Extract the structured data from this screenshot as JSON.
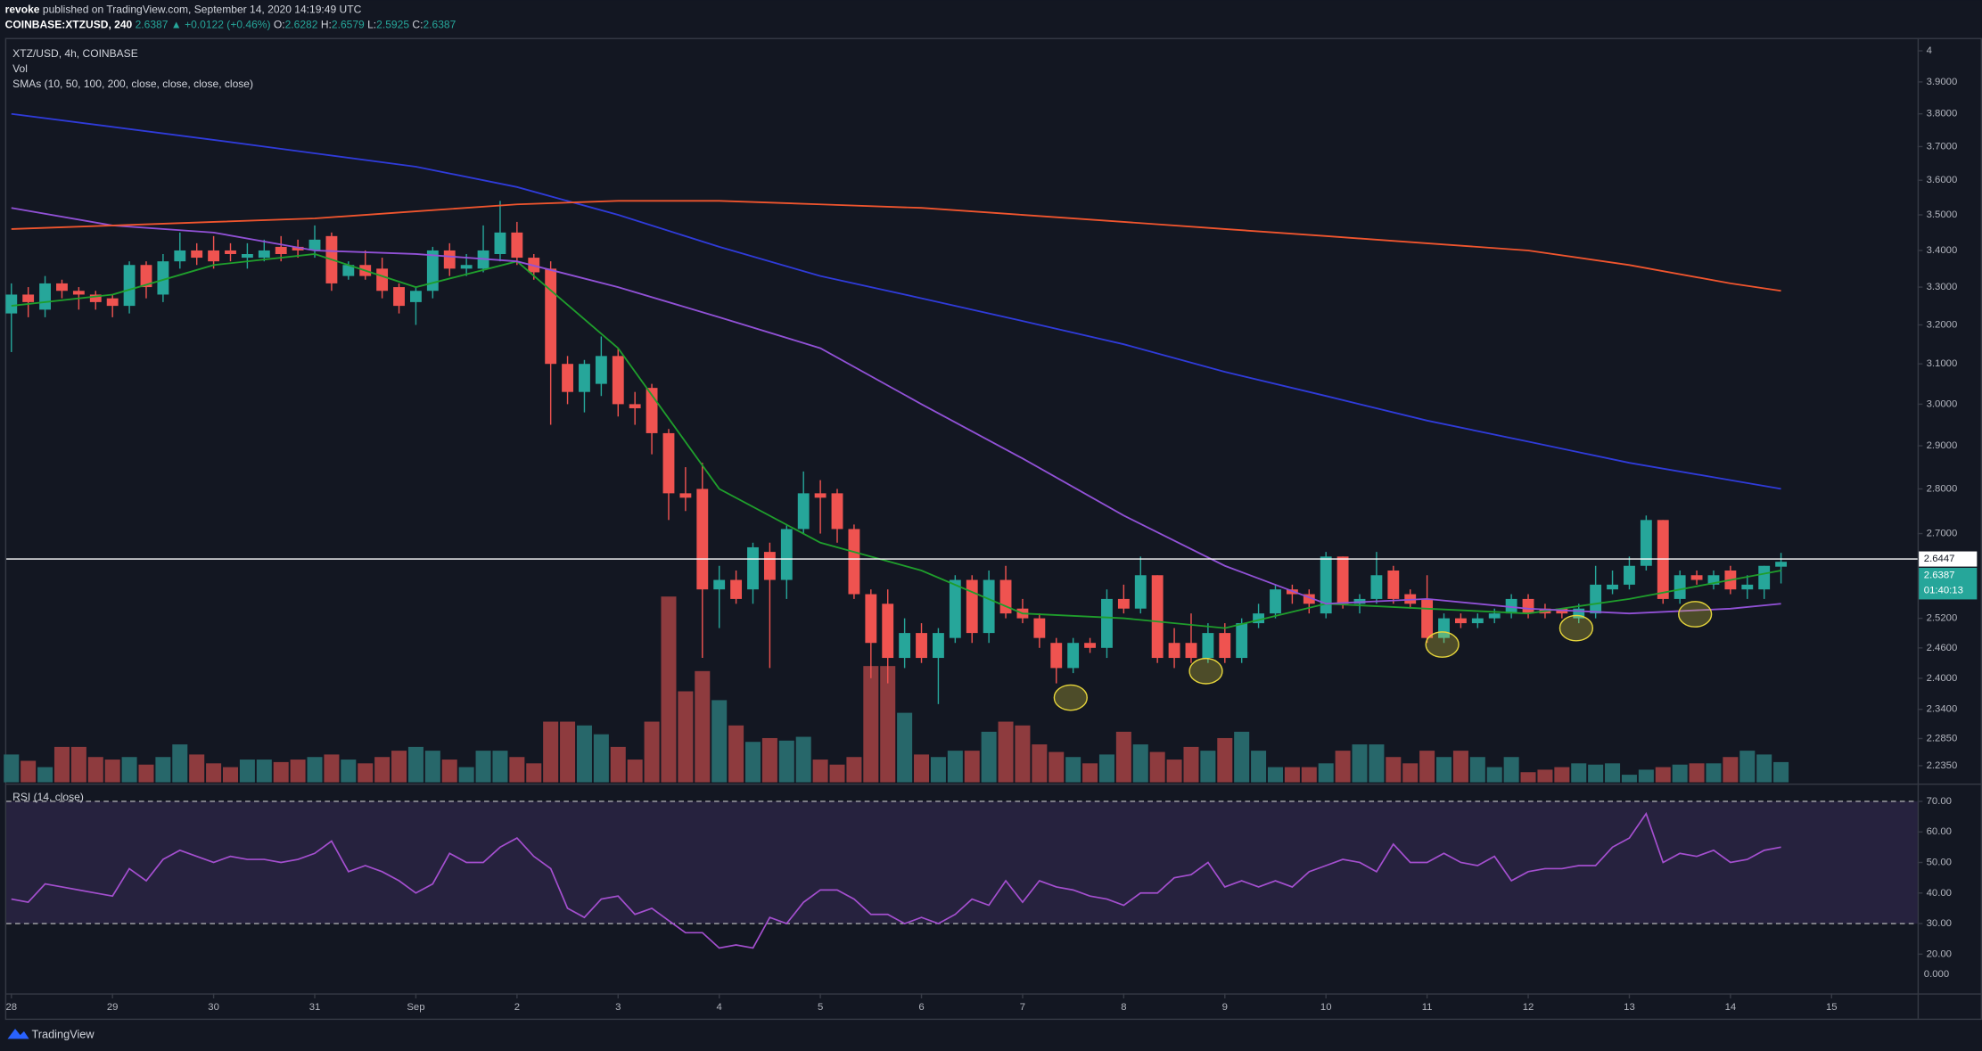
{
  "header": {
    "author": "revoke",
    "published": "published on TradingView.com, September 14, 2020 14:19:49 UTC",
    "symbol": "COINBASE:XTZUSD, 240",
    "quote": "2.6387 ▲ +0.0122 (+0.46%)",
    "ohlc": [
      {
        "label": "O:",
        "value": "2.6282"
      },
      {
        "label": "H:",
        "value": "2.6579"
      },
      {
        "label": "L:",
        "value": "2.5925"
      },
      {
        "label": "C:",
        "value": "2.6387"
      }
    ]
  },
  "footer": {
    "brand": "TradingView"
  },
  "chart_data": [
    {
      "type": "candlestick",
      "title": "XTZ/USD, 4h, COINBASE",
      "studies": "SMAs (10, 50, 100, 200, close, close, close, close)",
      "log_scale": true,
      "up_color": "#26a69a",
      "down_color": "#ef5350",
      "open": [
        3.23,
        3.28,
        3.24,
        3.31,
        3.29,
        3.28,
        3.27,
        3.25,
        3.36,
        3.28,
        3.37,
        3.4,
        3.4,
        3.4,
        3.38,
        3.38,
        3.41,
        3.41,
        3.4,
        3.44,
        3.33,
        3.36,
        3.35,
        3.3,
        3.26,
        3.29,
        3.4,
        3.35,
        3.35,
        3.39,
        3.45,
        3.38,
        3.35,
        3.1,
        3.03,
        3.05,
        3.12,
        3.0,
        3.04,
        2.93,
        2.79,
        2.8,
        2.58,
        2.6,
        2.58,
        2.66,
        2.6,
        2.71,
        2.79,
        2.79,
        2.71,
        2.57,
        2.55,
        2.44,
        2.49,
        2.44,
        2.48,
        2.6,
        2.49,
        2.6,
        2.54,
        2.52,
        2.47,
        2.42,
        2.47,
        2.46,
        2.56,
        2.54,
        2.61,
        2.47,
        2.47,
        2.44,
        2.49,
        2.44,
        2.51,
        2.53,
        2.58,
        2.57,
        2.53,
        2.65,
        2.55,
        2.56,
        2.62,
        2.57,
        2.56,
        2.48,
        2.52,
        2.51,
        2.52,
        2.53,
        2.56,
        2.54,
        2.54,
        2.52,
        2.53,
        2.58,
        2.59,
        2.63,
        2.73,
        2.56,
        2.61,
        2.59,
        2.62,
        2.58,
        2.58,
        2.6282
      ],
      "high": [
        3.31,
        3.3,
        3.33,
        3.32,
        3.3,
        3.29,
        3.28,
        3.37,
        3.37,
        3.39,
        3.45,
        3.42,
        3.44,
        3.42,
        3.42,
        3.43,
        3.44,
        3.43,
        3.47,
        3.45,
        3.37,
        3.4,
        3.38,
        3.31,
        3.3,
        3.41,
        3.42,
        3.39,
        3.47,
        3.54,
        3.48,
        3.39,
        3.37,
        3.12,
        3.11,
        3.17,
        3.14,
        3.03,
        3.05,
        2.94,
        2.85,
        2.86,
        2.63,
        2.62,
        2.68,
        2.68,
        2.72,
        2.84,
        2.82,
        2.8,
        2.72,
        2.58,
        2.58,
        2.52,
        2.51,
        2.5,
        2.61,
        2.61,
        2.62,
        2.63,
        2.56,
        2.53,
        2.48,
        2.48,
        2.48,
        2.58,
        2.59,
        2.65,
        2.61,
        2.5,
        2.53,
        2.51,
        2.51,
        2.52,
        2.55,
        2.59,
        2.59,
        2.58,
        2.66,
        2.65,
        2.57,
        2.66,
        2.63,
        2.58,
        2.61,
        2.53,
        2.53,
        2.53,
        2.54,
        2.57,
        2.57,
        2.55,
        2.54,
        2.55,
        2.63,
        2.62,
        2.65,
        2.74,
        2.73,
        2.62,
        2.62,
        2.62,
        2.63,
        2.61,
        2.63,
        2.6579
      ],
      "low": [
        3.13,
        3.22,
        3.22,
        3.27,
        3.24,
        3.24,
        3.22,
        3.23,
        3.27,
        3.26,
        3.35,
        3.36,
        3.35,
        3.37,
        3.35,
        3.37,
        3.37,
        3.38,
        3.38,
        3.29,
        3.32,
        3.32,
        3.27,
        3.23,
        3.2,
        3.27,
        3.33,
        3.33,
        3.34,
        3.37,
        3.36,
        3.32,
        2.95,
        3.0,
        2.98,
        3.02,
        2.97,
        2.95,
        2.88,
        2.73,
        2.75,
        2.44,
        2.5,
        2.55,
        2.55,
        2.42,
        2.56,
        2.7,
        2.7,
        2.68,
        2.56,
        2.4,
        2.39,
        2.42,
        2.43,
        2.35,
        2.47,
        2.47,
        2.47,
        2.52,
        2.51,
        2.46,
        2.39,
        2.41,
        2.45,
        2.44,
        2.53,
        2.53,
        2.43,
        2.42,
        2.43,
        2.43,
        2.43,
        2.43,
        2.5,
        2.52,
        2.55,
        2.53,
        2.52,
        2.54,
        2.53,
        2.55,
        2.55,
        2.54,
        2.47,
        2.47,
        2.5,
        2.5,
        2.51,
        2.52,
        2.52,
        2.52,
        2.52,
        2.51,
        2.52,
        2.57,
        2.58,
        2.62,
        2.55,
        2.55,
        2.59,
        2.58,
        2.57,
        2.56,
        2.56,
        2.5925
      ],
      "close": [
        3.28,
        3.26,
        3.31,
        3.29,
        3.28,
        3.26,
        3.25,
        3.36,
        3.3,
        3.37,
        3.4,
        3.38,
        3.37,
        3.39,
        3.39,
        3.4,
        3.39,
        3.4,
        3.43,
        3.31,
        3.36,
        3.33,
        3.29,
        3.25,
        3.29,
        3.4,
        3.35,
        3.36,
        3.4,
        3.45,
        3.38,
        3.34,
        3.1,
        3.03,
        3.1,
        3.12,
        3.0,
        2.99,
        2.93,
        2.79,
        2.78,
        2.58,
        2.6,
        2.56,
        2.67,
        2.6,
        2.71,
        2.79,
        2.78,
        2.71,
        2.57,
        2.47,
        2.44,
        2.49,
        2.44,
        2.49,
        2.6,
        2.49,
        2.6,
        2.53,
        2.52,
        2.48,
        2.42,
        2.47,
        2.46,
        2.56,
        2.54,
        2.61,
        2.44,
        2.44,
        2.44,
        2.49,
        2.44,
        2.51,
        2.53,
        2.58,
        2.57,
        2.55,
        2.65,
        2.55,
        2.56,
        2.61,
        2.56,
        2.55,
        2.48,
        2.52,
        2.51,
        2.52,
        2.53,
        2.56,
        2.53,
        2.53,
        2.53,
        2.54,
        2.59,
        2.59,
        2.63,
        2.73,
        2.56,
        2.61,
        2.6,
        2.61,
        2.58,
        2.59,
        2.63,
        2.6387
      ],
      "sma": [
        {
          "color": "#1f9e2c",
          "x": [
            0,
            6,
            12,
            18,
            24,
            30,
            36,
            42,
            48,
            54,
            60,
            66,
            72,
            78,
            84,
            90,
            96,
            102,
            105
          ],
          "values": [
            3.25,
            3.28,
            3.36,
            3.39,
            3.3,
            3.37,
            3.14,
            2.8,
            2.68,
            2.62,
            2.53,
            2.52,
            2.5,
            2.55,
            2.54,
            2.53,
            2.56,
            2.6,
            2.62
          ]
        },
        {
          "color": "#9151d6",
          "x": [
            0,
            6,
            12,
            18,
            24,
            30,
            36,
            42,
            48,
            54,
            60,
            66,
            72,
            78,
            84,
            90,
            96,
            102,
            105
          ],
          "values": [
            3.52,
            3.47,
            3.45,
            3.4,
            3.39,
            3.37,
            3.3,
            3.22,
            3.14,
            3.0,
            2.87,
            2.74,
            2.63,
            2.55,
            2.56,
            2.54,
            2.53,
            2.54,
            2.55
          ]
        },
        {
          "color": "#2f3bd9",
          "x": [
            0,
            6,
            12,
            18,
            24,
            30,
            36,
            42,
            48,
            54,
            60,
            66,
            72,
            78,
            84,
            90,
            96,
            102,
            105
          ],
          "values": [
            3.8,
            3.76,
            3.72,
            3.68,
            3.64,
            3.58,
            3.5,
            3.41,
            3.33,
            3.27,
            3.21,
            3.15,
            3.08,
            3.02,
            2.96,
            2.91,
            2.86,
            2.82,
            2.8
          ]
        },
        {
          "color": "#f0552e",
          "x": [
            0,
            6,
            12,
            18,
            24,
            30,
            36,
            42,
            48,
            54,
            60,
            66,
            72,
            78,
            84,
            90,
            96,
            102,
            105
          ],
          "values": [
            3.46,
            3.47,
            3.48,
            3.49,
            3.51,
            3.53,
            3.54,
            3.54,
            3.53,
            3.52,
            3.5,
            3.48,
            3.46,
            3.44,
            3.42,
            3.4,
            3.36,
            3.31,
            3.29
          ]
        }
      ],
      "ylim": [
        2.205,
        4.034
      ],
      "yticks": [
        {
          "value": 4,
          "label": "4"
        },
        {
          "value": 3.9,
          "label": "3.9000"
        },
        {
          "value": 3.8,
          "label": "3.8000"
        },
        {
          "value": 3.7,
          "label": "3.7000"
        },
        {
          "value": 3.6,
          "label": "3.6000"
        },
        {
          "value": 3.5,
          "label": "3.5000"
        },
        {
          "value": 3.4,
          "label": "3.4000"
        },
        {
          "value": 3.3,
          "label": "3.3000"
        },
        {
          "value": 3.2,
          "label": "3.2000"
        },
        {
          "value": 3.1,
          "label": "3.1000"
        },
        {
          "value": 3,
          "label": "3.0000"
        },
        {
          "value": 2.9,
          "label": "2.9000"
        },
        {
          "value": 2.8,
          "label": "2.8000"
        },
        {
          "value": 2.7,
          "label": "2.7000"
        },
        {
          "value": 2.52,
          "label": "2.5200"
        },
        {
          "value": 2.46,
          "label": "2.4600"
        },
        {
          "value": 2.4,
          "label": "2.4000"
        },
        {
          "value": 2.34,
          "label": "2.3400"
        },
        {
          "value": 2.285,
          "label": "2.2850"
        },
        {
          "value": 2.235,
          "label": "2.2350"
        }
      ],
      "xlim": [
        -0.3,
        113.1
      ],
      "xticks": [
        {
          "value": 0,
          "label": "28"
        },
        {
          "value": 6,
          "label": "29"
        },
        {
          "value": 12,
          "label": "30"
        },
        {
          "value": 18,
          "label": "31"
        },
        {
          "value": 24,
          "label": "Sep"
        },
        {
          "value": 30,
          "label": "2"
        },
        {
          "value": 36,
          "label": "3"
        },
        {
          "value": 42,
          "label": "4"
        },
        {
          "value": 48,
          "label": "5"
        },
        {
          "value": 54,
          "label": "6"
        },
        {
          "value": 60,
          "label": "7"
        },
        {
          "value": 66,
          "label": "8"
        },
        {
          "value": 72,
          "label": "9"
        },
        {
          "value": 78,
          "label": "10"
        },
        {
          "value": 84,
          "label": "11"
        },
        {
          "value": 90,
          "label": "12"
        },
        {
          "value": 96,
          "label": "13"
        },
        {
          "value": 102,
          "label": "14"
        },
        {
          "value": 108,
          "label": "15"
        }
      ],
      "price_line": {
        "value": 2.6447,
        "label": "2.6447",
        "color": "#ffffff"
      },
      "last_price": {
        "value": 2.6387,
        "label": "2.6387",
        "countdown": "01:40:13",
        "color": "#26a69a"
      }
    },
    {
      "type": "bar",
      "title": "Vol",
      "up_color": "#27676a",
      "down_color": "#8e3b3e",
      "ylim": [
        0,
        587
      ],
      "values": [
        22,
        17,
        12,
        28,
        28,
        20,
        18,
        20,
        14,
        20,
        30,
        22,
        15,
        12,
        18,
        18,
        16,
        18,
        20,
        22,
        18,
        15,
        20,
        25,
        28,
        25,
        18,
        12,
        25,
        25,
        20,
        15,
        48,
        48,
        45,
        38,
        28,
        18,
        48,
        147,
        72,
        88,
        65,
        45,
        32,
        35,
        33,
        36,
        18,
        14,
        20,
        92,
        92,
        55,
        22,
        20,
        25,
        25,
        40,
        48,
        45,
        30,
        24,
        20,
        15,
        22,
        40,
        30,
        24,
        18,
        28,
        25,
        35,
        40,
        25,
        12,
        12,
        12,
        15,
        25,
        30,
        30,
        20,
        15,
        25,
        20,
        25,
        20,
        12,
        20,
        8,
        10,
        12,
        15,
        14,
        15,
        6,
        10,
        12,
        14,
        15,
        15,
        20,
        25,
        22,
        16
      ]
    },
    {
      "type": "line",
      "title": "RSI (14, close)",
      "color": "#a44fcf",
      "band": [
        30,
        70
      ],
      "band_color": "rgba(126,87,194,0.18)",
      "ylim": [
        8.4,
        75
      ],
      "yticks": [
        {
          "value": 70,
          "label": "70.00"
        },
        {
          "value": 60,
          "label": "60.00"
        },
        {
          "value": 50,
          "label": "50.00"
        },
        {
          "value": 40,
          "label": "40.00"
        },
        {
          "value": 30,
          "label": "30.00"
        },
        {
          "value": 20,
          "label": "20.00"
        }
      ],
      "zero_label": "0.000",
      "values": [
        38,
        37,
        43,
        42,
        41,
        40,
        39,
        48,
        44,
        51,
        54,
        52,
        50,
        52,
        51,
        51,
        50,
        51,
        53,
        57,
        47,
        49,
        47,
        44,
        40,
        43,
        53,
        50,
        50,
        55,
        58,
        52,
        48,
        35,
        32,
        38,
        39,
        33,
        35,
        31,
        27,
        27,
        22,
        23,
        22,
        32,
        30,
        37,
        41,
        41,
        38,
        33,
        33,
        30,
        32,
        30,
        33,
        38,
        36,
        44,
        37,
        44,
        42,
        41,
        39,
        38,
        36,
        40,
        40,
        45,
        46,
        50,
        42,
        44,
        42,
        44,
        42,
        47,
        49,
        51,
        50,
        47,
        56,
        50,
        50,
        53,
        50,
        49,
        52,
        44,
        47,
        48,
        48,
        49,
        49,
        55,
        58,
        66,
        50,
        53,
        52,
        54,
        50,
        51,
        54,
        55
      ]
    }
  ]
}
